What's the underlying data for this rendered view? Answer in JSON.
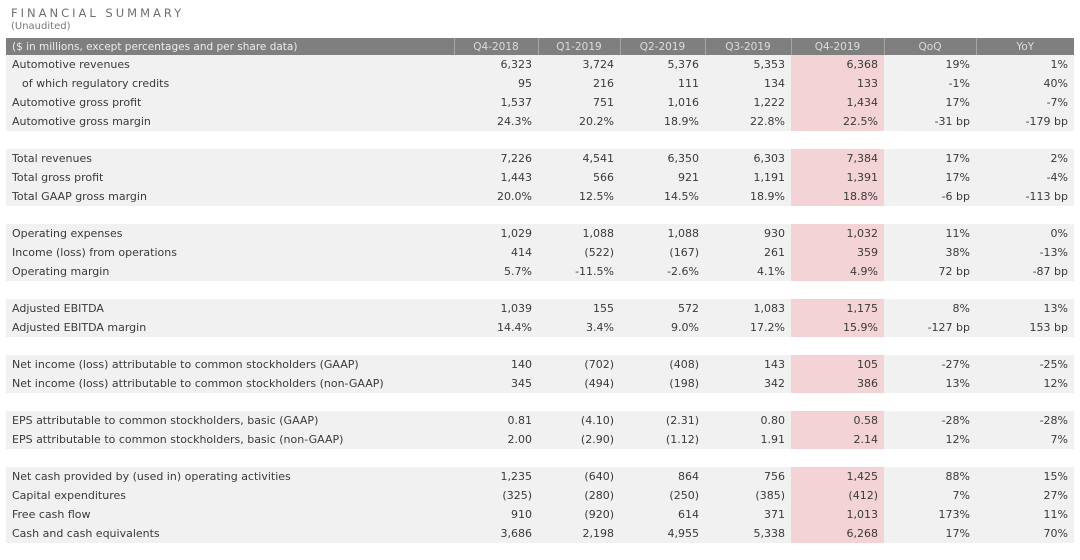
{
  "title": "FINANCIAL SUMMARY",
  "subtitle": "(Unaudited)",
  "columns": [
    "($ in millions, except percentages and per share data)",
    "Q4-2018",
    "Q1-2019",
    "Q2-2019",
    "Q3-2019",
    "Q4-2019",
    "QoQ",
    "YoY"
  ],
  "highlight_color": "#f4d3d6",
  "header_color": "#7f7f7f",
  "groups": [
    {
      "rows": [
        {
          "label": "Automotive revenues",
          "values": [
            "6,323",
            "3,724",
            "5,376",
            "5,353",
            "6,368",
            "19%",
            "1%"
          ]
        },
        {
          "label": "of which regulatory credits",
          "indent": true,
          "values": [
            "95",
            "216",
            "111",
            "134",
            "133",
            "-1%",
            "40%"
          ]
        },
        {
          "label": "Automotive gross profit",
          "values": [
            "1,537",
            "751",
            "1,016",
            "1,222",
            "1,434",
            "17%",
            "-7%"
          ]
        },
        {
          "label": "Automotive gross margin",
          "values": [
            "24.3%",
            "20.2%",
            "18.9%",
            "22.8%",
            "22.5%",
            "-31 bp",
            "-179 bp"
          ]
        }
      ]
    },
    {
      "rows": [
        {
          "label": "Total revenues",
          "values": [
            "7,226",
            "4,541",
            "6,350",
            "6,303",
            "7,384",
            "17%",
            "2%"
          ]
        },
        {
          "label": "Total gross profit",
          "values": [
            "1,443",
            "566",
            "921",
            "1,191",
            "1,391",
            "17%",
            "-4%"
          ]
        },
        {
          "label": "Total GAAP gross margin",
          "values": [
            "20.0%",
            "12.5%",
            "14.5%",
            "18.9%",
            "18.8%",
            "-6 bp",
            "-113 bp"
          ]
        }
      ]
    },
    {
      "rows": [
        {
          "label": "Operating expenses",
          "values": [
            "1,029",
            "1,088",
            "1,088",
            "930",
            "1,032",
            "11%",
            "0%"
          ]
        },
        {
          "label": "Income (loss) from operations",
          "values": [
            "414",
            "(522)",
            "(167)",
            "261",
            "359",
            "38%",
            "-13%"
          ]
        },
        {
          "label": "Operating margin",
          "values": [
            "5.7%",
            "-11.5%",
            "-2.6%",
            "4.1%",
            "4.9%",
            "72 bp",
            "-87 bp"
          ]
        }
      ]
    },
    {
      "rows": [
        {
          "label": "Adjusted EBITDA",
          "values": [
            "1,039",
            "155",
            "572",
            "1,083",
            "1,175",
            "8%",
            "13%"
          ]
        },
        {
          "label": "Adjusted EBITDA margin",
          "values": [
            "14.4%",
            "3.4%",
            "9.0%",
            "17.2%",
            "15.9%",
            "-127 bp",
            "153 bp"
          ]
        }
      ]
    },
    {
      "rows": [
        {
          "label": "Net income (loss) attributable to common stockholders (GAAP)",
          "values": [
            "140",
            "(702)",
            "(408)",
            "143",
            "105",
            "-27%",
            "-25%"
          ]
        },
        {
          "label": "Net income (loss) attributable to common stockholders (non-GAAP)",
          "values": [
            "345",
            "(494)",
            "(198)",
            "342",
            "386",
            "13%",
            "12%"
          ]
        }
      ]
    },
    {
      "rows": [
        {
          "label": "EPS attributable to common stockholders, basic (GAAP)",
          "values": [
            "0.81",
            "(4.10)",
            "(2.31)",
            "0.80",
            "0.58",
            "-28%",
            "-28%"
          ]
        },
        {
          "label": "EPS attributable to common stockholders, basic (non-GAAP)",
          "values": [
            "2.00",
            "(2.90)",
            "(1.12)",
            "1.91",
            "2.14",
            "12%",
            "7%"
          ]
        }
      ]
    },
    {
      "rows": [
        {
          "label": "Net cash provided by (used in) operating activities",
          "values": [
            "1,235",
            "(640)",
            "864",
            "756",
            "1,425",
            "88%",
            "15%"
          ]
        },
        {
          "label": "Capital expenditures",
          "values": [
            "(325)",
            "(280)",
            "(250)",
            "(385)",
            "(412)",
            "7%",
            "27%"
          ]
        },
        {
          "label": "Free cash flow",
          "values": [
            "910",
            "(920)",
            "614",
            "371",
            "1,013",
            "173%",
            "11%"
          ]
        },
        {
          "label": "Cash and cash equivalents",
          "values": [
            "3,686",
            "2,198",
            "4,955",
            "5,338",
            "6,268",
            "17%",
            "70%"
          ]
        }
      ]
    }
  ]
}
